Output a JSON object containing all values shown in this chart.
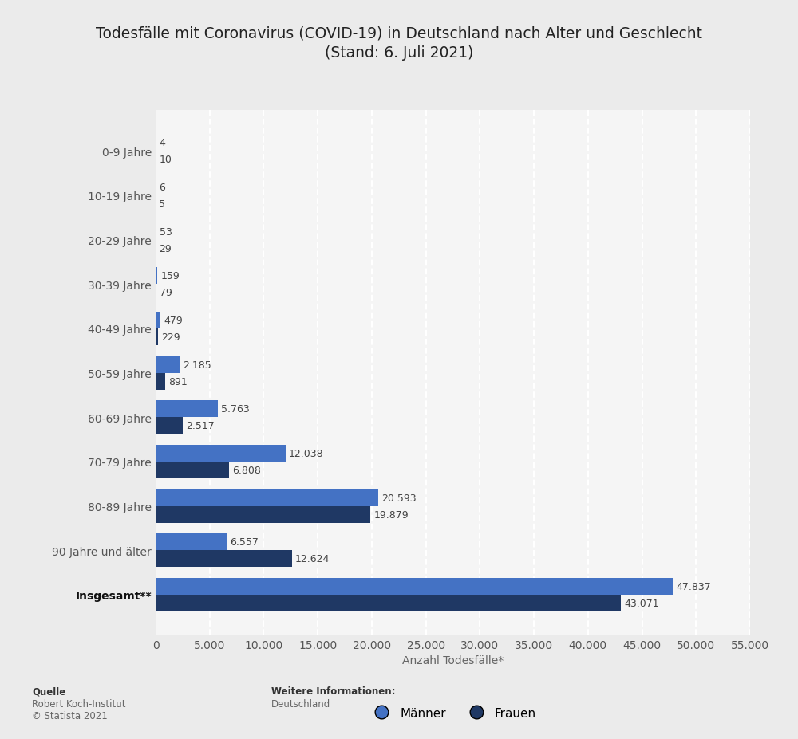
{
  "title": "Todesfälle mit Coronavirus (COVID-19) in Deutschland nach Alter und Geschlecht\n(Stand: 6. Juli 2021)",
  "categories": [
    "0-9 Jahre",
    "10-19 Jahre",
    "20-29 Jahre",
    "30-39 Jahre",
    "40-49 Jahre",
    "50-59 Jahre",
    "60-69 Jahre",
    "70-79 Jahre",
    "80-89 Jahre",
    "90 Jahre und älter",
    "Insgesamt**"
  ],
  "maenner": [
    4,
    6,
    53,
    159,
    479,
    2185,
    5763,
    12038,
    20593,
    6557,
    47837
  ],
  "frauen": [
    10,
    5,
    29,
    79,
    229,
    891,
    2517,
    6808,
    19879,
    12624,
    43071
  ],
  "maenner_color": "#4472C4",
  "frauen_color": "#1F3864",
  "xlabel": "Anzahl Todesfälle*",
  "xlim": [
    0,
    55000
  ],
  "xticks": [
    0,
    5000,
    10000,
    15000,
    20000,
    25000,
    30000,
    35000,
    40000,
    45000,
    50000,
    55000
  ],
  "xtick_labels": [
    "0",
    "5.000",
    "10.000",
    "15.000",
    "20.000",
    "25.000",
    "30.000",
    "35.000",
    "40.000",
    "45.000",
    "50.000",
    "55.000"
  ],
  "background_color": "#ebebeb",
  "plot_bg_color": "#f5f5f5",
  "legend_maenner": "Männer",
  "legend_frauen": "Frauen",
  "source_label": "Quelle",
  "source_text": "Robert Koch-Institut\n© Statista 2021",
  "further_info_label": "Weitere Informationen:",
  "further_info_text": "Deutschland",
  "title_fontsize": 13.5,
  "label_fontsize": 10,
  "tick_fontsize": 10,
  "bar_value_fontsize": 9,
  "legend_fontsize": 11
}
